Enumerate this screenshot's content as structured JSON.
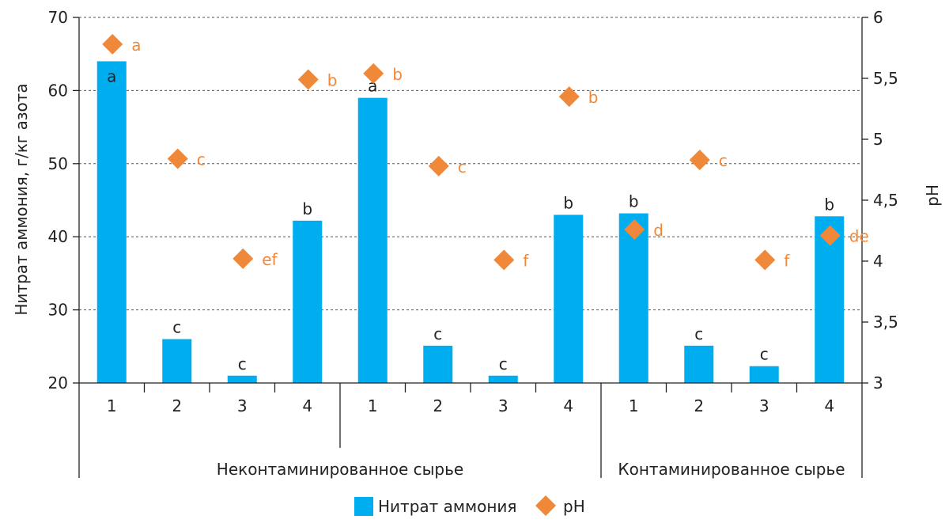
{
  "chart_data": {
    "type": "bar",
    "ylabel": "Нитрат аммония, г/кг азота",
    "y2label": "pH",
    "ylim": [
      20,
      70
    ],
    "yticks": [
      20,
      30,
      40,
      50,
      60,
      70
    ],
    "y2lim": [
      3,
      6
    ],
    "y2ticks": [
      "3",
      "3,5",
      "4",
      "4,5",
      "5",
      "5,5",
      "6"
    ],
    "categories": [
      "1",
      "2",
      "3",
      "4",
      "1",
      "2",
      "3",
      "4",
      "1",
      "2",
      "3",
      "4"
    ],
    "groups": [
      {
        "label": "Неконтаминированное сырье",
        "span": [
          0,
          7
        ]
      },
      {
        "label": "Контаминированное сырье",
        "span": [
          8,
          11
        ]
      }
    ],
    "grid": true,
    "legend_position": "bottom",
    "colors": {
      "bar": "#00aeef",
      "ph": "#f0883a"
    },
    "series": [
      {
        "name": "Нитрат аммония",
        "kind": "bar",
        "values": [
          64,
          26,
          21,
          42.2,
          59,
          25.1,
          21,
          43,
          43.2,
          25.1,
          22.3,
          42.8
        ],
        "letters": [
          "a",
          "c",
          "c",
          "b",
          "a",
          "c",
          "c",
          "b",
          "b",
          "c",
          "c",
          "b"
        ]
      },
      {
        "name": "pH",
        "kind": "scatter",
        "marker": "diamond",
        "values": [
          5.78,
          4.84,
          4.02,
          5.49,
          5.54,
          4.78,
          4.01,
          5.35,
          4.26,
          4.83,
          4.01,
          4.21
        ],
        "letters": [
          "a",
          "c",
          "ef",
          "b",
          "b",
          "c",
          "f",
          "b",
          "d",
          "c",
          "f",
          "de"
        ]
      }
    ]
  }
}
